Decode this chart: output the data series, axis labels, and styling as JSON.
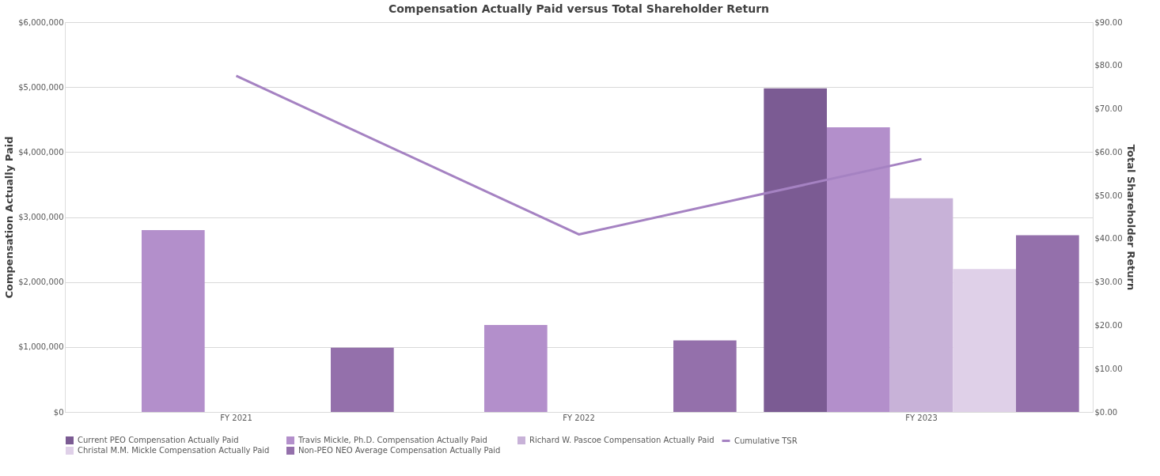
{
  "chart_data": {
    "type": "bar",
    "title": "Compensation Actually Paid versus Total Shareholder Return",
    "categories": [
      "FY 2021",
      "FY 2022",
      "FY 2023"
    ],
    "series": [
      {
        "name": "Current PEO Compensation Actually Paid",
        "color": "#7b5b93",
        "values": [
          null,
          null,
          4980000
        ]
      },
      {
        "name": "Travis Mickle, Ph.D. Compensation Actually Paid",
        "color": "#b38fcb",
        "values": [
          2800000,
          1340000,
          4380000
        ]
      },
      {
        "name": "Richard W. Pascoe Compensation Actually Paid",
        "color": "#c8b2d8",
        "values": [
          null,
          null,
          3290000
        ]
      },
      {
        "name": "Christal M.M. Mickle Compensation Actually Paid",
        "color": "#dfd0e8",
        "values": [
          null,
          null,
          2200000
        ]
      },
      {
        "name": "Non-PEO NEO Average Compensation Actually Paid",
        "color": "#9470ab",
        "values": [
          990000,
          1100000,
          2720000
        ]
      },
      {
        "name": "Cumulative TSR",
        "type": "line",
        "axis": "y2",
        "color": "#a582c2",
        "values": [
          77.6,
          41.0,
          58.4
        ]
      }
    ],
    "ylabel": "Compensation Actually Paid",
    "y2label": "Total Shareholder Return",
    "ylim": [
      0,
      6000000
    ],
    "yticks": [
      {
        "value": 0,
        "label": "$0"
      },
      {
        "value": 1000000,
        "label": "$1,000,000"
      },
      {
        "value": 2000000,
        "label": "$2,000,000"
      },
      {
        "value": 3000000,
        "label": "$3,000,000"
      },
      {
        "value": 4000000,
        "label": "$4,000,000"
      },
      {
        "value": 5000000,
        "label": "$5,000,000"
      },
      {
        "value": 6000000,
        "label": "$6,000,000"
      }
    ],
    "y2lim": [
      0,
      90
    ],
    "y2ticks": [
      {
        "value": 0,
        "label": "$0.00"
      },
      {
        "value": 10,
        "label": "$10.00"
      },
      {
        "value": 20,
        "label": "$20.00"
      },
      {
        "value": 30,
        "label": "$30.00"
      },
      {
        "value": 40,
        "label": "$40.00"
      },
      {
        "value": 50,
        "label": "$50.00"
      },
      {
        "value": 60,
        "label": "$60.00"
      },
      {
        "value": 70,
        "label": "$70.00"
      },
      {
        "value": 80,
        "label": "$80.00"
      },
      {
        "value": 90,
        "label": "$90.00"
      }
    ],
    "grid": "y",
    "legend": "bottom"
  }
}
